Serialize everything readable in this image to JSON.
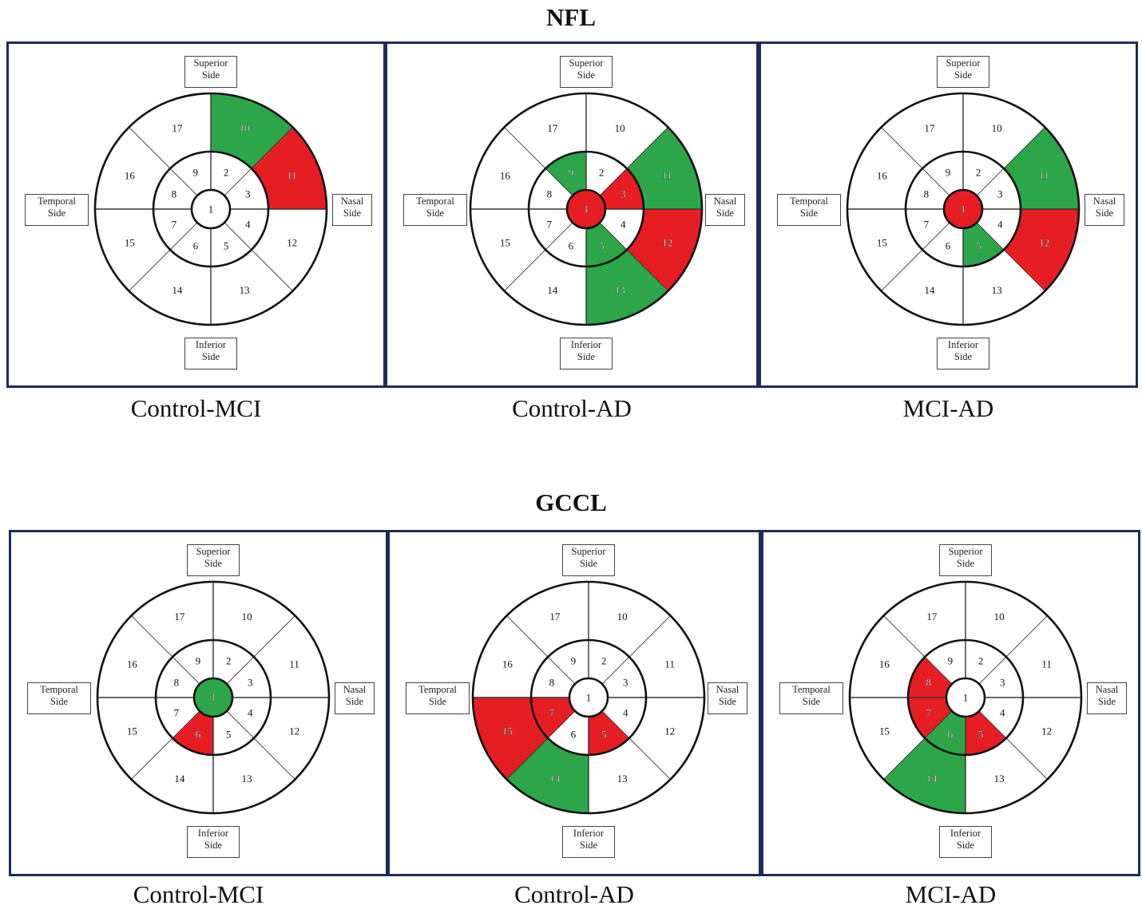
{
  "colors": {
    "significant_higher": "#2da64a",
    "significant_lower": "#e61e24",
    "neutral": "#ffffff",
    "frame": "#1f2a5c"
  },
  "side_labels": {
    "superior": [
      "Superior",
      "Side"
    ],
    "inferior": [
      "Inferior",
      "Side"
    ],
    "temporal": [
      "Temporal",
      "Side"
    ],
    "nasal": [
      "Nasal",
      "Side"
    ]
  },
  "sections": [
    {
      "title": "NFL",
      "panels": [
        {
          "caption": "Control-MCI",
          "green": [
            10
          ],
          "red": [
            11
          ]
        },
        {
          "caption": "Control-AD",
          "green": [
            9,
            11,
            5,
            13
          ],
          "red": [
            1,
            3,
            12
          ]
        },
        {
          "caption": "MCI-AD",
          "green": [
            11,
            5
          ],
          "red": [
            1,
            12
          ]
        }
      ]
    },
    {
      "title": "GCCL",
      "panels": [
        {
          "caption": "Control-MCI",
          "green": [
            1
          ],
          "red": [
            6
          ]
        },
        {
          "caption": "Control-AD",
          "green": [
            14
          ],
          "red": [
            7,
            5,
            15
          ]
        },
        {
          "caption": "MCI-AD",
          "green": [
            6,
            14
          ],
          "red": [
            8,
            7,
            5
          ]
        }
      ]
    }
  ]
}
